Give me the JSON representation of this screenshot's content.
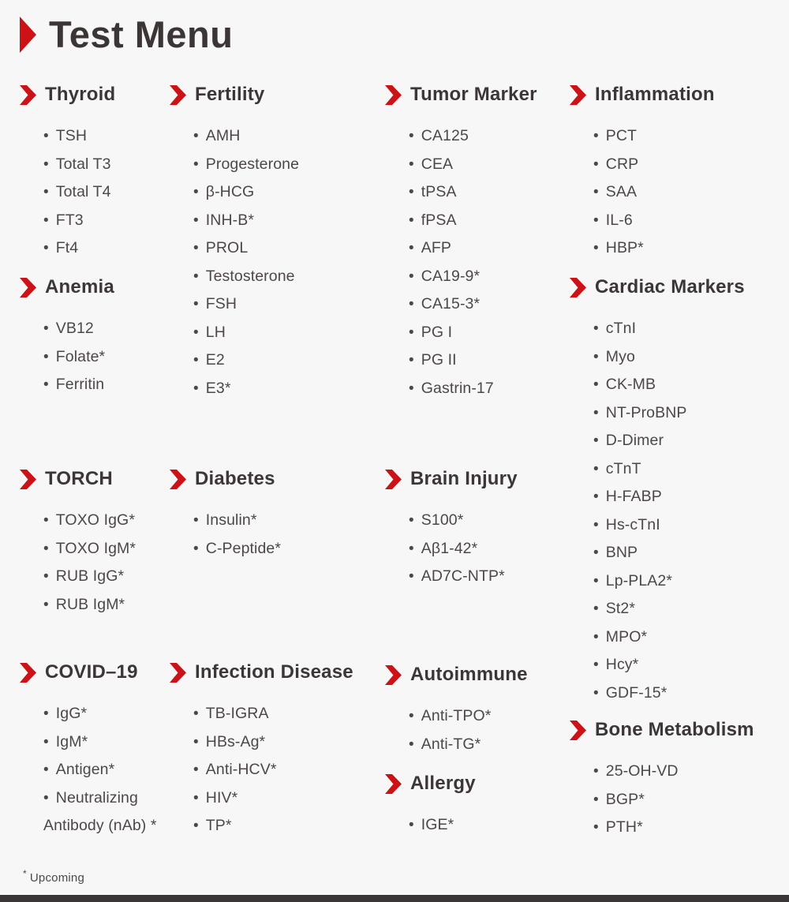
{
  "page": {
    "title": "Test Menu",
    "footnote_marker": "*",
    "footnote_text": "Upcoming"
  },
  "colors": {
    "accent_red": "#cc1217",
    "heading_text": "#3c3637",
    "item_text": "#4d4748",
    "background": "#f7f7f7",
    "bottom_bar": "#3a3536"
  },
  "sections": {
    "thyroid": {
      "title": "Thyroid",
      "items": [
        "TSH",
        "Total T3",
        "Total T4",
        "FT3",
        "Ft4"
      ]
    },
    "anemia": {
      "title": "Anemia",
      "items": [
        "VB12",
        "Folate*",
        "Ferritin"
      ]
    },
    "torch": {
      "title": "TORCH",
      "items": [
        "TOXO IgG*",
        "TOXO IgM*",
        "RUB IgG*",
        "RUB IgM*"
      ]
    },
    "covid": {
      "title": "COVID–19",
      "items": [
        "IgG*",
        "IgM*",
        "Antigen*",
        "Neutralizing Antibody (nAb) *"
      ]
    },
    "fertility": {
      "title": "Fertility",
      "items": [
        "AMH",
        "Progesterone",
        "β-HCG",
        "INH-B*",
        "PROL",
        "Testosterone",
        "FSH",
        "LH",
        "E2",
        "E3*"
      ]
    },
    "diabetes": {
      "title": "Diabetes",
      "items": [
        "Insulin*",
        "C-Peptide*"
      ]
    },
    "infection": {
      "title": "Infection Disease",
      "items": [
        "TB-IGRA",
        "HBs-Ag*",
        "Anti-HCV*",
        "HIV*",
        "TP*"
      ]
    },
    "tumor": {
      "title": "Tumor Marker",
      "items": [
        "CA125",
        "CEA",
        "tPSA",
        "fPSA",
        "AFP",
        "CA19-9*",
        "CA15-3*",
        "PG I",
        "PG II",
        "Gastrin-17"
      ]
    },
    "brain": {
      "title": "Brain Injury",
      "items": [
        "S100*",
        "Aβ1-42*",
        "AD7C-NTP*"
      ]
    },
    "autoimmune": {
      "title": "Autoimmune",
      "items": [
        "Anti-TPO*",
        "Anti-TG*"
      ]
    },
    "allergy": {
      "title": "Allergy",
      "items": [
        "IGE*"
      ]
    },
    "inflammation": {
      "title": "Inflammation",
      "items": [
        "PCT",
        "CRP",
        "SAA",
        "IL-6",
        "HBP*"
      ]
    },
    "cardiac": {
      "title": "Cardiac Markers",
      "items": [
        "cTnI",
        "Myo",
        "CK-MB",
        "NT-ProBNP",
        "D-Dimer",
        "cTnT",
        "H-FABP",
        "Hs-cTnI",
        "BNP",
        "Lp-PLA2*",
        "St2*",
        "MPO*",
        "Hcy*",
        "GDF-15*"
      ]
    },
    "bone": {
      "title": "Bone Metabolism",
      "items": [
        "25-OH-VD",
        "BGP*",
        "PTH*"
      ]
    }
  }
}
